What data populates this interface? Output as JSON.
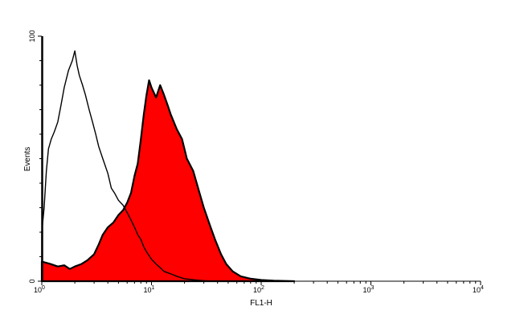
{
  "chart_data": {
    "type": "area",
    "xscale": "log",
    "xlim": [
      1,
      10000
    ],
    "ylim": [
      0,
      100
    ],
    "xlabel": "FL1-H",
    "ylabel": "Events",
    "grid": false,
    "legend": "none",
    "x_ticks": [
      {
        "value": 1,
        "base": "10",
        "exp": "0"
      },
      {
        "value": 10,
        "base": "10",
        "exp": "1"
      },
      {
        "value": 100,
        "base": "10",
        "exp": "2"
      },
      {
        "value": 1000,
        "base": "10",
        "exp": "3"
      },
      {
        "value": 10000,
        "base": "10",
        "exp": "4"
      }
    ],
    "y_ticks": [
      {
        "value": 0,
        "label": "0"
      },
      {
        "value": 100,
        "label": "100"
      }
    ],
    "series": [
      {
        "role": "stained",
        "fill": "#ff0000",
        "stroke": "#000000",
        "points": [
          [
            1.0,
            8
          ],
          [
            1.2,
            7
          ],
          [
            1.4,
            6
          ],
          [
            1.6,
            6.5
          ],
          [
            1.8,
            5
          ],
          [
            2.0,
            6
          ],
          [
            2.3,
            7
          ],
          [
            2.6,
            8.5
          ],
          [
            3.0,
            11
          ],
          [
            3.3,
            15
          ],
          [
            3.6,
            19
          ],
          [
            4.0,
            22
          ],
          [
            4.5,
            24
          ],
          [
            5.0,
            27
          ],
          [
            5.5,
            29
          ],
          [
            6.0,
            32
          ],
          [
            6.5,
            36
          ],
          [
            7.0,
            43
          ],
          [
            7.5,
            48
          ],
          [
            8.0,
            58
          ],
          [
            8.5,
            68
          ],
          [
            9.0,
            76
          ],
          [
            9.5,
            82
          ],
          [
            10.0,
            79
          ],
          [
            11.0,
            75
          ],
          [
            12.0,
            80
          ],
          [
            13.0,
            76
          ],
          [
            14.0,
            72
          ],
          [
            15.0,
            68
          ],
          [
            17.0,
            62
          ],
          [
            19.0,
            58
          ],
          [
            21.0,
            50
          ],
          [
            24.0,
            45
          ],
          [
            27.0,
            37
          ],
          [
            30.0,
            30
          ],
          [
            34.0,
            23
          ],
          [
            38.0,
            17
          ],
          [
            43.0,
            11
          ],
          [
            48.0,
            7
          ],
          [
            55.0,
            4
          ],
          [
            65.0,
            2
          ],
          [
            80.0,
            1
          ],
          [
            100.0,
            0.5
          ],
          [
            130.0,
            0.2
          ],
          [
            200.0,
            0
          ]
        ]
      },
      {
        "role": "control",
        "fill": "none",
        "stroke": "#000000",
        "points": [
          [
            1.0,
            20
          ],
          [
            1.05,
            30
          ],
          [
            1.1,
            45
          ],
          [
            1.15,
            54
          ],
          [
            1.22,
            58
          ],
          [
            1.3,
            61
          ],
          [
            1.4,
            65
          ],
          [
            1.5,
            72
          ],
          [
            1.6,
            79
          ],
          [
            1.75,
            86
          ],
          [
            1.9,
            90
          ],
          [
            2.0,
            94
          ],
          [
            2.1,
            88
          ],
          [
            2.2,
            84
          ],
          [
            2.35,
            80
          ],
          [
            2.5,
            76
          ],
          [
            2.7,
            70
          ],
          [
            2.9,
            65
          ],
          [
            3.1,
            60
          ],
          [
            3.3,
            55
          ],
          [
            3.6,
            50
          ],
          [
            4.0,
            44
          ],
          [
            4.3,
            38
          ],
          [
            4.6,
            36
          ],
          [
            5.0,
            33
          ],
          [
            5.5,
            31
          ],
          [
            6.0,
            28
          ],
          [
            6.5,
            25
          ],
          [
            7.0,
            22
          ],
          [
            7.5,
            19
          ],
          [
            8.0,
            17
          ],
          [
            8.5,
            14
          ],
          [
            9.0,
            12
          ],
          [
            10.0,
            9
          ],
          [
            11.0,
            7
          ],
          [
            12.0,
            5.5
          ],
          [
            13.0,
            4
          ],
          [
            15.0,
            3
          ],
          [
            17.0,
            2
          ],
          [
            20.0,
            1
          ],
          [
            25.0,
            0.5
          ],
          [
            30.0,
            0.2
          ],
          [
            40.0,
            0
          ]
        ]
      }
    ]
  }
}
